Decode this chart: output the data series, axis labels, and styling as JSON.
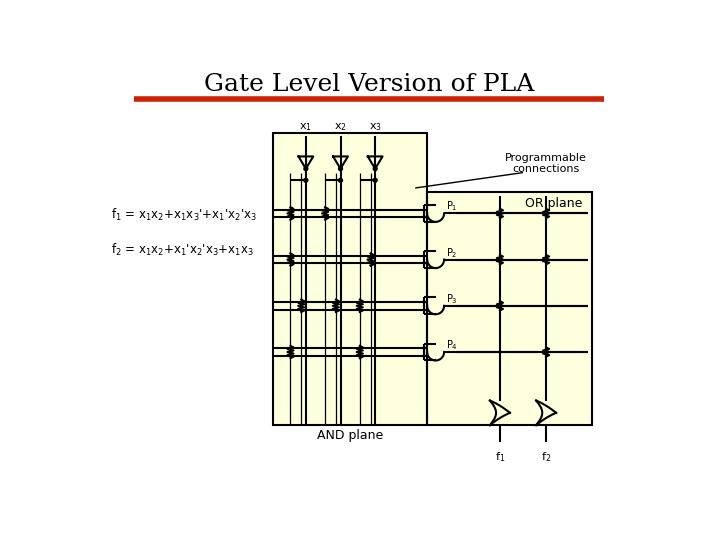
{
  "title": "Gate Level Version of PLA",
  "title_fontsize": 18,
  "bg_color": "#ffffff",
  "yellow_bg": "#ffffdd",
  "line_color": "#000000",
  "red_line_color": "#cc2200",
  "f1_label": "f$_1$ = x$_1$x$_2$+x$_1$x$_3$'+x$_1$'x$_2$'x$_3$",
  "f2_label": "f$_2$ = x$_1$x$_2$+x$_1$'x$_2$'x$_3$+x$_1$x$_3$",
  "x_labels": [
    "x$_1$",
    "x$_2$",
    "x$_3$"
  ],
  "programmable_connections": "Programmable\nconnections",
  "or_plane": "OR plane",
  "and_plane": "AND plane",
  "p_labels": [
    "P$_1$",
    "P$_2$",
    "P$_3$",
    "P$_4$"
  ],
  "f_out_labels": [
    "f$_1$",
    "f$_2$"
  ]
}
